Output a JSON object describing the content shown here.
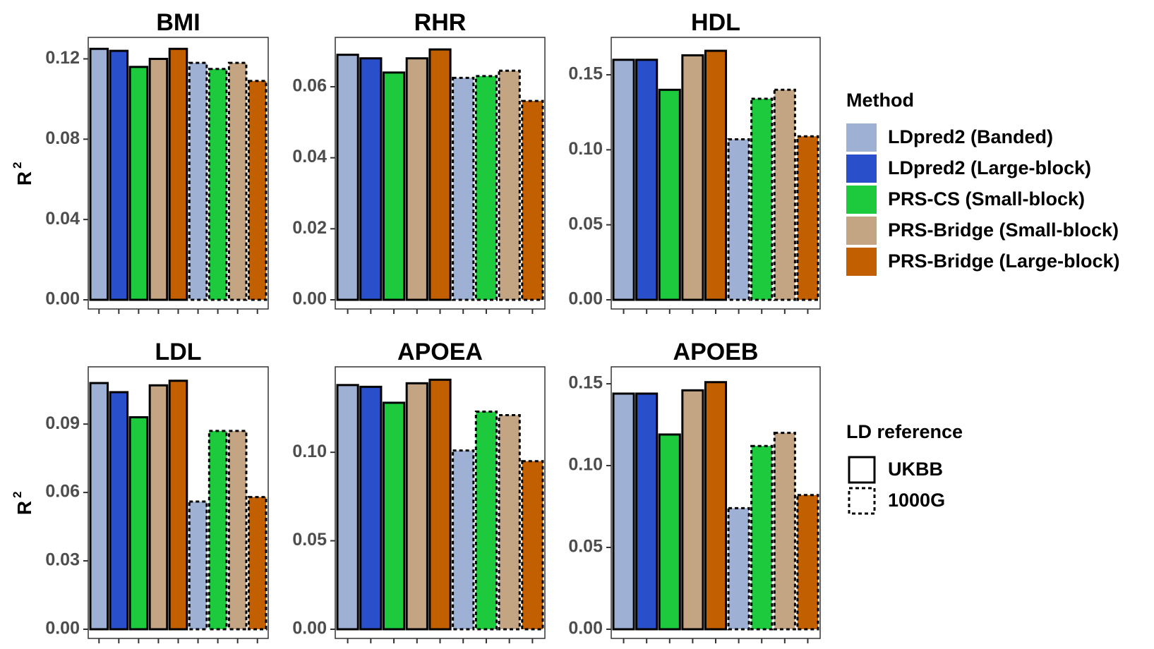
{
  "chart_data": {
    "type": "bar",
    "y_label": "R",
    "y_label_superscript": "2",
    "methods": [
      "LDpred2 (Banded)",
      "LDpred2 (Large-block)",
      "PRS-CS (Small-block)",
      "PRS-Bridge (Small-block)",
      "PRS-Bridge (Large-block)"
    ],
    "method_colors": [
      "#9EB0D4",
      "#2A4FCB",
      "#1DC93D",
      "#C4A583",
      "#C25F00"
    ],
    "bar_order": [
      {
        "method": 0,
        "ld_reference": "UKBB"
      },
      {
        "method": 1,
        "ld_reference": "UKBB"
      },
      {
        "method": 2,
        "ld_reference": "UKBB"
      },
      {
        "method": 3,
        "ld_reference": "UKBB"
      },
      {
        "method": 4,
        "ld_reference": "UKBB"
      },
      {
        "method": 0,
        "ld_reference": "1000G"
      },
      {
        "method": 2,
        "ld_reference": "1000G"
      },
      {
        "method": 3,
        "ld_reference": "1000G"
      },
      {
        "method": 4,
        "ld_reference": "1000G"
      }
    ],
    "panels": [
      {
        "title": "BMI",
        "ylim": [
          0,
          0.13
        ],
        "yticks": [
          "0.00",
          "0.04",
          "0.08",
          "0.12"
        ],
        "show_ylabel": true,
        "values": [
          0.125,
          0.124,
          0.116,
          0.12,
          0.125,
          0.118,
          0.115,
          0.118,
          0.109
        ]
      },
      {
        "title": "RHR",
        "ylim": [
          0,
          0.0735
        ],
        "yticks": [
          "0.00",
          "0.02",
          "0.04",
          "0.06"
        ],
        "show_ylabel": false,
        "values": [
          0.069,
          0.068,
          0.064,
          0.068,
          0.0705,
          0.0625,
          0.063,
          0.0645,
          0.056
        ]
      },
      {
        "title": "HDL",
        "ylim": [
          0,
          0.174
        ],
        "yticks": [
          "0.00",
          "0.05",
          "0.10",
          "0.15"
        ],
        "show_ylabel": false,
        "values": [
          0.16,
          0.16,
          0.14,
          0.163,
          0.166,
          0.107,
          0.134,
          0.14,
          0.109
        ]
      },
      {
        "title": "LDL",
        "ylim": [
          0,
          0.1145
        ],
        "yticks": [
          "0.00",
          "0.03",
          "0.06",
          "0.09"
        ],
        "show_ylabel": true,
        "values": [
          0.108,
          0.104,
          0.093,
          0.107,
          0.109,
          0.056,
          0.087,
          0.087,
          0.058
        ]
      },
      {
        "title": "APOEA",
        "ylim": [
          0,
          0.1475
        ],
        "yticks": [
          "0.00",
          "0.05",
          "0.10"
        ],
        "show_ylabel": false,
        "values": [
          0.138,
          0.137,
          0.128,
          0.139,
          0.141,
          0.101,
          0.123,
          0.121,
          0.095
        ]
      },
      {
        "title": "APOEB",
        "ylim": [
          0,
          0.1595
        ],
        "yticks": [
          "0.00",
          "0.05",
          "0.10",
          "0.15"
        ],
        "show_ylabel": false,
        "values": [
          0.144,
          0.144,
          0.119,
          0.146,
          0.151,
          0.074,
          0.112,
          0.12,
          0.082
        ]
      }
    ],
    "legend": {
      "method_title": "Method",
      "ld_title": "LD reference",
      "ld_items": [
        "UKBB",
        "1000G"
      ],
      "position": "right"
    }
  }
}
